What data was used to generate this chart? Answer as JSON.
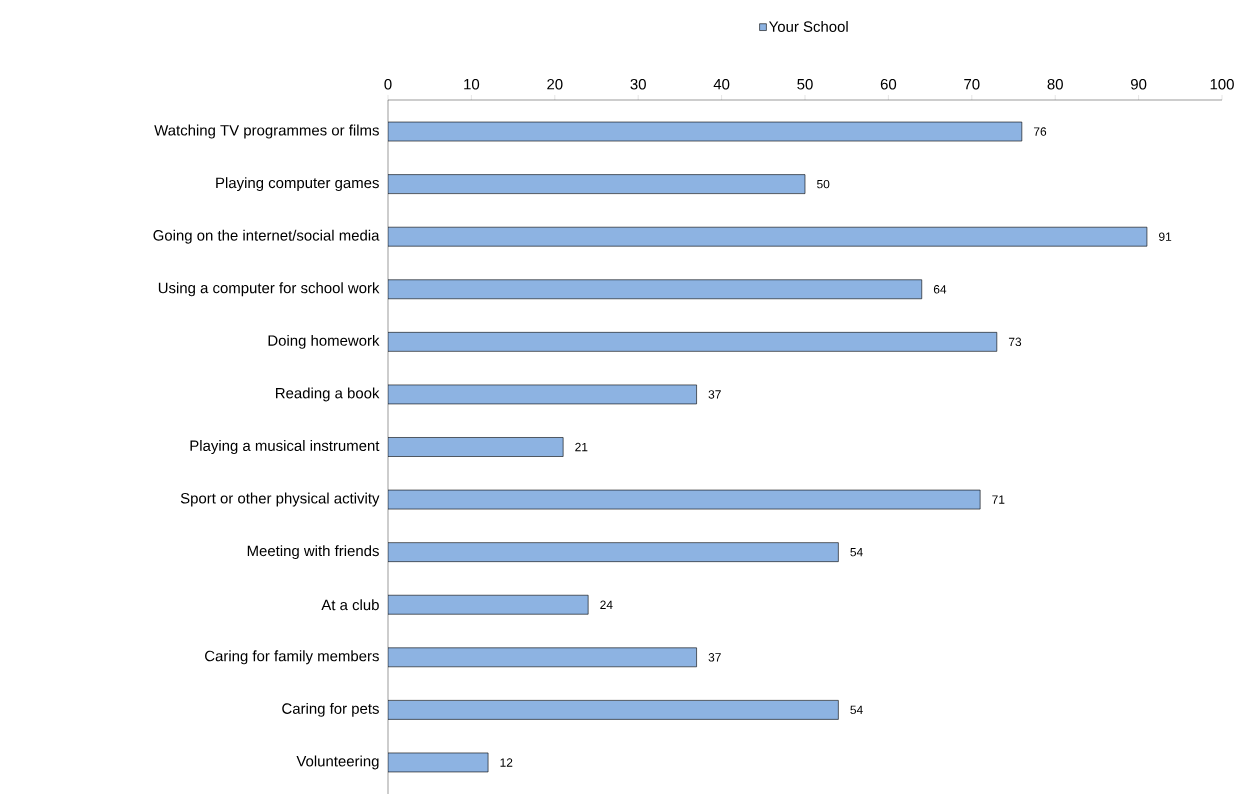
{
  "chart_data": {
    "type": "bar",
    "orientation": "horizontal",
    "categories": [
      "Watching TV programmes or films",
      "Playing computer games",
      "Going on the internet/social media",
      "Using a computer for school work",
      "Doing homework",
      "Reading a book",
      "Playing a musical instrument",
      "Sport or other physical activity",
      "Meeting with friends",
      "At a club",
      "Caring for family members",
      "Caring for pets",
      "Volunteering"
    ],
    "series": [
      {
        "name": "Your School",
        "color": "#8db3e2",
        "values": [
          76,
          50,
          91,
          64,
          73,
          37,
          21,
          71,
          54,
          24,
          37,
          54,
          12
        ]
      }
    ],
    "xlim": [
      0,
      100
    ],
    "xticks": [
      0,
      10,
      20,
      30,
      40,
      50,
      60,
      70,
      80,
      90,
      100
    ],
    "data_labels": true,
    "legend": "top",
    "grid": false
  }
}
